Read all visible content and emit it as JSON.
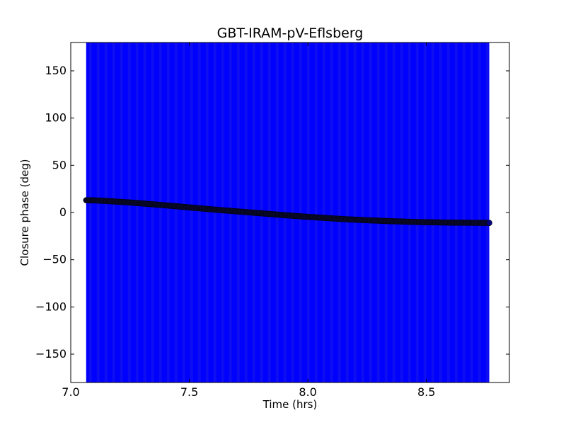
{
  "chart_data": {
    "type": "scatter",
    "title": "GBT-IRAM-pV-Eflsberg",
    "xlabel": "Time (hrs)",
    "ylabel": "Closure phase (deg)",
    "xlim": [
      7.0,
      8.85
    ],
    "ylim": [
      -180,
      180
    ],
    "xticks": [
      7.0,
      7.5,
      8.0,
      8.5
    ],
    "xtick_labels": [
      "7.0",
      "7.5",
      "8.0",
      "8.5"
    ],
    "yticks": [
      150,
      100,
      50,
      0,
      -50,
      -100,
      -150
    ],
    "ytick_labels": [
      "150",
      "100",
      "50",
      "0",
      "−50",
      "−100",
      "−150"
    ],
    "grid": false,
    "legend": "none",
    "error_band": {
      "color": "#0000ff",
      "x_start": 7.065,
      "x_end": 8.765,
      "y_range": [
        -180,
        180
      ]
    },
    "series": [
      {
        "marker_color": "#000080",
        "x": [
          7.065,
          7.1,
          7.15,
          7.2,
          7.25,
          7.3,
          7.35,
          7.4,
          7.45,
          7.5,
          7.55,
          7.6,
          7.65,
          7.7,
          7.75,
          7.8,
          7.85,
          7.9,
          7.95,
          8.0,
          8.05,
          8.1,
          8.15,
          8.2,
          8.25,
          8.3,
          8.35,
          8.4,
          8.45,
          8.5,
          8.55,
          8.6,
          8.65,
          8.7,
          8.765
        ],
        "y": [
          13,
          12.8,
          12.2,
          11.4,
          10.6,
          9.6,
          8.6,
          7.6,
          6.5,
          5.4,
          4.3,
          3.2,
          2.2,
          1.2,
          0.2,
          -0.8,
          -1.8,
          -2.8,
          -3.7,
          -4.6,
          -5.4,
          -6.2,
          -7.0,
          -7.6,
          -8.2,
          -8.7,
          -9.2,
          -9.6,
          -10.0,
          -10.3,
          -10.5,
          -10.7,
          -10.8,
          -10.9,
          -11.0
        ]
      }
    ]
  }
}
